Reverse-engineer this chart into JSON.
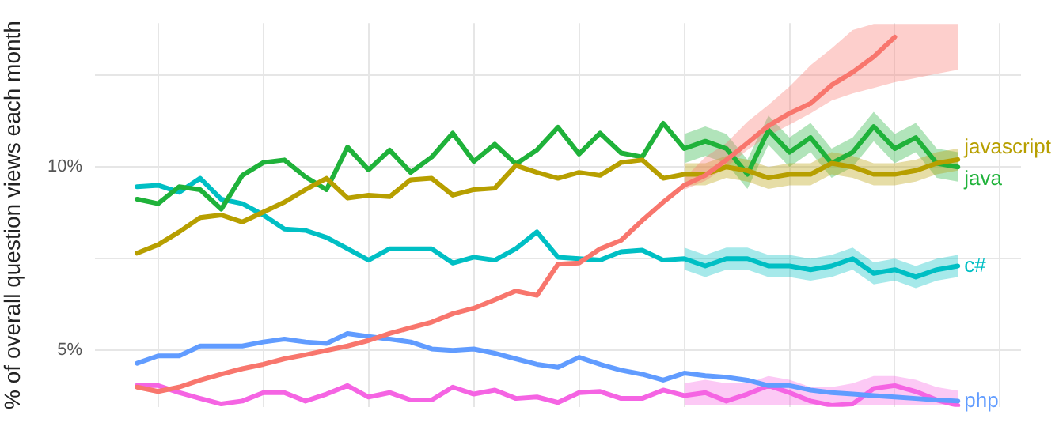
{
  "chart_data": {
    "type": "line",
    "ylabel": "% of overall question views each month",
    "categories": [
      null,
      null,
      null,
      null,
      null,
      null,
      null,
      null,
      null,
      null,
      null,
      null,
      null,
      null,
      null,
      null,
      null,
      null,
      null,
      null,
      null,
      null,
      null,
      null,
      null,
      null,
      null,
      null,
      null,
      null,
      null,
      null,
      null,
      null,
      null,
      null,
      null,
      null,
      null,
      null,
      null,
      null,
      null,
      null,
      null
    ],
    "ylim": [
      3.46,
      13.92
    ],
    "yticks": [
      {
        "value": 5,
        "label": "5%"
      },
      {
        "value": 7.5,
        "label": null
      },
      {
        "value": 10,
        "label": "10%"
      },
      {
        "value": 12.5,
        "label": null
      }
    ],
    "grid": true,
    "legend": false,
    "marker": "none",
    "line_style": "solid",
    "series": [
      {
        "color": "#f8766d",
        "values": [
          null,
          null,
          4.0,
          3.88,
          4.0,
          4.19,
          4.35,
          4.5,
          4.62,
          4.77,
          4.88,
          5.0,
          5.12,
          5.27,
          5.46,
          5.62,
          5.77,
          6.0,
          6.15,
          6.38,
          6.62,
          6.5,
          7.35,
          7.38,
          7.77,
          8.0,
          8.54,
          9.04,
          9.5,
          9.77,
          10.19,
          10.65,
          11.12,
          11.46,
          11.73,
          12.23,
          12.58,
          13.0,
          13.54,
          null,
          null,
          null,
          null,
          null,
          null
        ],
        "lower": [
          null,
          null,
          null,
          null,
          null,
          null,
          null,
          null,
          null,
          null,
          null,
          null,
          null,
          null,
          null,
          null,
          null,
          null,
          null,
          null,
          null,
          null,
          null,
          null,
          null,
          null,
          null,
          null,
          9.38,
          9.62,
          10.0,
          10.46,
          10.85,
          11.15,
          11.46,
          11.81,
          12.0,
          12.15,
          12.31,
          12.42,
          12.54,
          12.65,
          null,
          null,
          null
        ],
        "upper": [
          null,
          null,
          null,
          null,
          null,
          null,
          null,
          null,
          null,
          null,
          null,
          null,
          null,
          null,
          null,
          null,
          null,
          null,
          null,
          null,
          null,
          null,
          null,
          null,
          null,
          null,
          null,
          null,
          9.69,
          10.27,
          10.65,
          11.23,
          11.69,
          12.19,
          12.77,
          13.23,
          13.73,
          13.9,
          13.9,
          13.9,
          13.9,
          13.9,
          null,
          null,
          null
        ]
      },
      {
        "name": "javascript",
        "color": "#b79f00",
        "values": [
          null,
          null,
          7.65,
          7.88,
          8.23,
          8.62,
          8.69,
          8.5,
          8.77,
          9.04,
          9.38,
          9.69,
          9.15,
          9.23,
          9.19,
          9.65,
          9.69,
          9.23,
          9.38,
          9.42,
          10.04,
          9.85,
          9.69,
          9.85,
          9.77,
          10.12,
          10.19,
          9.69,
          9.8,
          9.8,
          10.0,
          9.9,
          9.7,
          9.8,
          9.8,
          10.1,
          10.0,
          9.8,
          9.8,
          9.9,
          10.1,
          10.2,
          null,
          null,
          null
        ],
        "lower": [
          null,
          null,
          null,
          null,
          null,
          null,
          null,
          null,
          null,
          null,
          null,
          null,
          null,
          null,
          null,
          null,
          null,
          null,
          null,
          null,
          null,
          null,
          null,
          null,
          null,
          null,
          null,
          null,
          9.5,
          9.5,
          9.7,
          9.6,
          9.4,
          9.5,
          9.5,
          9.8,
          9.7,
          9.5,
          9.5,
          9.6,
          9.8,
          9.9,
          null,
          null,
          null
        ],
        "upper": [
          null,
          null,
          null,
          null,
          null,
          null,
          null,
          null,
          null,
          null,
          null,
          null,
          null,
          null,
          null,
          null,
          null,
          null,
          null,
          null,
          null,
          null,
          null,
          null,
          null,
          null,
          null,
          null,
          10.1,
          10.1,
          10.3,
          10.2,
          10.0,
          10.1,
          10.1,
          10.4,
          10.3,
          10.1,
          10.1,
          10.2,
          10.4,
          10.5,
          null,
          null,
          null
        ]
      },
      {
        "name": "java",
        "color": "#1fb23a",
        "values": [
          null,
          null,
          9.12,
          9.0,
          9.46,
          9.38,
          8.85,
          9.77,
          10.12,
          10.19,
          9.73,
          9.38,
          10.54,
          9.92,
          10.46,
          9.85,
          10.27,
          10.92,
          10.15,
          10.62,
          10.08,
          10.46,
          11.08,
          10.35,
          10.92,
          10.38,
          10.27,
          11.19,
          10.5,
          10.7,
          10.5,
          9.8,
          11.0,
          10.4,
          10.8,
          10.1,
          10.4,
          11.1,
          10.5,
          10.8,
          10.1,
          10.0,
          null,
          null,
          null
        ],
        "lower": [
          null,
          null,
          null,
          null,
          null,
          null,
          null,
          null,
          null,
          null,
          null,
          null,
          null,
          null,
          null,
          null,
          null,
          null,
          null,
          null,
          null,
          null,
          null,
          null,
          null,
          null,
          null,
          null,
          10.1,
          10.3,
          10.1,
          9.4,
          10.6,
          10.0,
          10.4,
          9.7,
          10.0,
          10.7,
          10.1,
          10.4,
          9.7,
          9.6,
          null,
          null,
          null
        ],
        "upper": [
          null,
          null,
          null,
          null,
          null,
          null,
          null,
          null,
          null,
          null,
          null,
          null,
          null,
          null,
          null,
          null,
          null,
          null,
          null,
          null,
          null,
          null,
          null,
          null,
          null,
          null,
          null,
          null,
          10.9,
          11.1,
          10.9,
          10.2,
          11.4,
          10.8,
          11.2,
          10.5,
          10.8,
          11.5,
          10.9,
          11.2,
          10.5,
          10.4,
          null,
          null,
          null
        ]
      },
      {
        "name": "c#",
        "color": "#00bfc4",
        "values": [
          null,
          null,
          9.46,
          9.5,
          9.31,
          9.69,
          9.12,
          9.0,
          8.69,
          8.31,
          8.27,
          8.08,
          7.77,
          7.46,
          7.77,
          7.77,
          7.77,
          7.38,
          7.54,
          7.46,
          7.77,
          8.23,
          7.54,
          7.5,
          7.46,
          7.69,
          7.73,
          7.46,
          7.5,
          7.3,
          7.5,
          7.5,
          7.3,
          7.3,
          7.2,
          7.3,
          7.5,
          7.1,
          7.2,
          7.0,
          7.2,
          7.3,
          null,
          null,
          null
        ],
        "lower": [
          null,
          null,
          null,
          null,
          null,
          null,
          null,
          null,
          null,
          null,
          null,
          null,
          null,
          null,
          null,
          null,
          null,
          null,
          null,
          null,
          null,
          null,
          null,
          null,
          null,
          null,
          null,
          null,
          7.2,
          7.0,
          7.2,
          7.2,
          7.0,
          7.0,
          6.9,
          7.0,
          7.2,
          6.8,
          6.9,
          6.7,
          6.9,
          7.0,
          null,
          null,
          null
        ],
        "upper": [
          null,
          null,
          null,
          null,
          null,
          null,
          null,
          null,
          null,
          null,
          null,
          null,
          null,
          null,
          null,
          null,
          null,
          null,
          null,
          null,
          null,
          null,
          null,
          null,
          null,
          null,
          null,
          null,
          7.8,
          7.6,
          7.8,
          7.8,
          7.6,
          7.6,
          7.5,
          7.6,
          7.8,
          7.4,
          7.5,
          7.3,
          7.5,
          7.6,
          null,
          null,
          null
        ]
      },
      {
        "name": "php",
        "color": "#619cff",
        "values": [
          null,
          null,
          4.65,
          4.85,
          4.85,
          5.12,
          5.12,
          5.12,
          5.23,
          5.31,
          5.23,
          5.19,
          5.46,
          5.38,
          5.31,
          5.23,
          5.04,
          5.0,
          5.04,
          4.92,
          4.77,
          4.62,
          4.54,
          4.81,
          4.62,
          4.46,
          4.35,
          4.19,
          4.38,
          4.31,
          4.27,
          4.19,
          4.04,
          4.04,
          3.92,
          3.85,
          3.81,
          3.77,
          3.73,
          3.69,
          3.65,
          3.62,
          null,
          null,
          null
        ]
      },
      {
        "color": "#f564e3",
        "values": [
          null,
          null,
          4.04,
          4.04,
          3.85,
          3.69,
          3.54,
          3.62,
          3.85,
          3.85,
          3.62,
          3.81,
          4.04,
          3.73,
          3.85,
          3.65,
          3.65,
          4.0,
          3.81,
          3.92,
          3.69,
          3.73,
          3.58,
          3.85,
          3.88,
          3.69,
          3.69,
          3.92,
          3.77,
          3.85,
          3.62,
          3.81,
          4.04,
          3.85,
          3.62,
          3.5,
          3.54,
          3.96,
          4.04,
          3.88,
          3.65,
          3.5,
          null,
          null,
          null
        ],
        "lower": [
          null,
          null,
          null,
          null,
          null,
          null,
          null,
          null,
          null,
          null,
          null,
          null,
          null,
          null,
          null,
          null,
          null,
          null,
          null,
          null,
          null,
          null,
          null,
          null,
          null,
          null,
          null,
          null,
          3.5,
          3.5,
          3.5,
          3.5,
          3.5,
          3.5,
          3.5,
          3.5,
          3.5,
          3.5,
          3.5,
          3.5,
          3.5,
          3.5,
          null,
          null,
          null
        ],
        "upper": [
          null,
          null,
          null,
          null,
          null,
          null,
          null,
          null,
          null,
          null,
          null,
          null,
          null,
          null,
          null,
          null,
          null,
          null,
          null,
          null,
          null,
          null,
          null,
          null,
          null,
          null,
          null,
          null,
          4.1,
          4.2,
          4.1,
          4.1,
          4.3,
          4.2,
          4.0,
          4.0,
          4.1,
          4.3,
          4.3,
          4.2,
          4.0,
          3.9,
          null,
          null,
          null
        ]
      }
    ]
  }
}
